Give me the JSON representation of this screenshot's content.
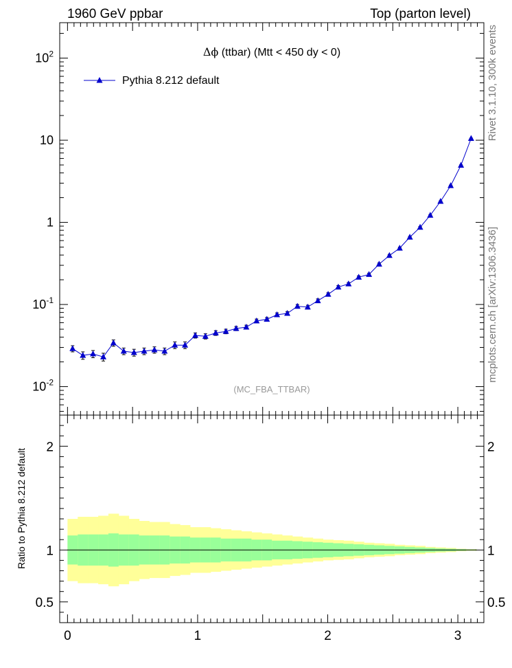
{
  "header": {
    "left": "1960 GeV ppbar",
    "right": "Top (parton level)"
  },
  "side_labels": {
    "rivet": "Rivet 3.1.10,  300k events",
    "mcplots": "mcplots.cern.ch [arXiv:1306.3436]"
  },
  "chart_data": [
    {
      "type": "line",
      "panel": "main",
      "title": "Δϕ (ttbar) (Mtt < 450 dy < 0)",
      "title_prefix": "Δϕ",
      "title_rest": " (ttbar) (Mtt < 450 dy < 0)",
      "watermark": "(MC_FBA_TTBAR)",
      "xlim": [
        -0.06,
        3.2
      ],
      "ylim": [
        0.0045,
        270
      ],
      "yscale": "log",
      "y_tick_labels": [
        "10-2",
        "10-1",
        "1",
        "10",
        "102"
      ],
      "legend_placement": "top-left",
      "color": "#0000cc",
      "series": [
        {
          "name": "Pythia 8.212 default",
          "x": [
            0.039,
            0.118,
            0.196,
            0.275,
            0.353,
            0.432,
            0.511,
            0.589,
            0.668,
            0.746,
            0.825,
            0.903,
            0.982,
            1.06,
            1.139,
            1.217,
            1.296,
            1.374,
            1.453,
            1.532,
            1.61,
            1.689,
            1.767,
            1.846,
            1.924,
            2.003,
            2.081,
            2.16,
            2.238,
            2.317,
            2.395,
            2.474,
            2.553,
            2.631,
            2.71,
            2.788,
            2.867,
            2.945,
            3.024,
            3.102
          ],
          "y": [
            0.029,
            0.024,
            0.025,
            0.023,
            0.034,
            0.027,
            0.026,
            0.027,
            0.028,
            0.027,
            0.032,
            0.032,
            0.042,
            0.041,
            0.045,
            0.047,
            0.051,
            0.053,
            0.063,
            0.066,
            0.075,
            0.078,
            0.095,
            0.093,
            0.111,
            0.133,
            0.163,
            0.178,
            0.215,
            0.232,
            0.31,
            0.395,
            0.485,
            0.66,
            0.87,
            1.22,
            1.8,
            2.8,
            4.95,
            10.5
          ],
          "err": [
            0.0025,
            0.0025,
            0.0025,
            0.0025,
            0.003,
            0.0025,
            0.0025,
            0.0025,
            0.0025,
            0.0025,
            0.003,
            0.003,
            0.003,
            0.003,
            0.003,
            0.003,
            0.003,
            0.003,
            0.0035,
            0.0035,
            0.004,
            0.004,
            0.005,
            0.005,
            0.006,
            0.006,
            0.007,
            0.007,
            0.008,
            0.008,
            0.01,
            0.012,
            0.013,
            0.016,
            0.02,
            0.025,
            0.03,
            0.045,
            0.07,
            0.1
          ]
        }
      ]
    },
    {
      "type": "area",
      "panel": "ratio",
      "ylabel": "Ratio to Pythia 8.212 default",
      "xlim": [
        -0.06,
        3.2
      ],
      "ylim": [
        0.3,
        2.3
      ],
      "x_ticks": [
        0,
        1,
        2,
        3
      ],
      "y_ticks": [
        0.5,
        1,
        2
      ],
      "reference_line": 1,
      "band_colors": {
        "inner": "#99ff99",
        "outer": "#ffff99"
      },
      "bin_edges": [
        0.0,
        0.0785,
        0.157,
        0.236,
        0.314,
        0.393,
        0.471,
        0.55,
        0.628,
        0.707,
        0.785,
        0.864,
        0.942,
        1.021,
        1.1,
        1.178,
        1.257,
        1.335,
        1.414,
        1.492,
        1.571,
        1.649,
        1.728,
        1.806,
        1.885,
        1.963,
        2.042,
        2.121,
        2.199,
        2.278,
        2.356,
        2.435,
        2.513,
        2.592,
        2.67,
        2.749,
        2.827,
        2.906,
        2.985,
        3.063,
        3.142
      ],
      "inner_band_halfwidth": [
        0.14,
        0.15,
        0.15,
        0.15,
        0.16,
        0.15,
        0.15,
        0.14,
        0.14,
        0.14,
        0.13,
        0.13,
        0.12,
        0.12,
        0.12,
        0.11,
        0.11,
        0.11,
        0.1,
        0.1,
        0.09,
        0.09,
        0.085,
        0.08,
        0.075,
        0.07,
        0.065,
        0.06,
        0.055,
        0.05,
        0.045,
        0.04,
        0.035,
        0.03,
        0.025,
        0.02,
        0.015,
        0.012,
        0.008,
        0.005
      ],
      "outer_band_halfwidth": [
        0.3,
        0.32,
        0.32,
        0.33,
        0.35,
        0.33,
        0.3,
        0.28,
        0.27,
        0.27,
        0.25,
        0.24,
        0.22,
        0.22,
        0.21,
        0.2,
        0.19,
        0.18,
        0.17,
        0.16,
        0.15,
        0.14,
        0.13,
        0.12,
        0.11,
        0.1,
        0.095,
        0.09,
        0.08,
        0.07,
        0.065,
        0.06,
        0.05,
        0.045,
        0.04,
        0.03,
        0.025,
        0.02,
        0.012,
        0.008
      ]
    }
  ]
}
